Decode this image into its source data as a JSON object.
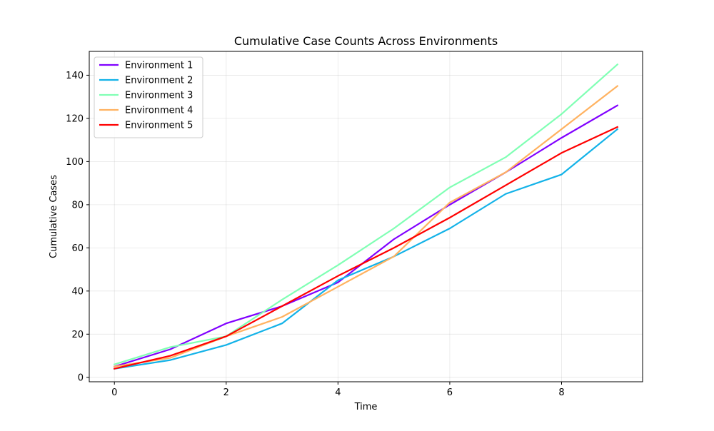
{
  "chart_data": {
    "type": "line",
    "title": "Cumulative Case Counts Across Environments",
    "xlabel": "Time",
    "ylabel": "Cumulative Cases",
    "xlim": [
      -0.45,
      9.45
    ],
    "ylim": [
      -2.05,
      151.05
    ],
    "xticks": [
      0,
      2,
      4,
      6,
      8
    ],
    "yticks": [
      0,
      20,
      40,
      60,
      80,
      100,
      120,
      140
    ],
    "grid": true,
    "legend_position": "upper left",
    "x": [
      0,
      1,
      2,
      3,
      4,
      5,
      6,
      7,
      8,
      9
    ],
    "series": [
      {
        "name": "Environment 1",
        "color": "#8000ff",
        "values": [
          5,
          13,
          25,
          33,
          44,
          64,
          80,
          95,
          111,
          126
        ]
      },
      {
        "name": "Environment 2",
        "color": "#12b2e8",
        "values": [
          4,
          8,
          15,
          25,
          45,
          56,
          69,
          85,
          94,
          115
        ]
      },
      {
        "name": "Environment 3",
        "color": "#80ffb4",
        "values": [
          6,
          14,
          19,
          36,
          52,
          69,
          88,
          102,
          122,
          145
        ]
      },
      {
        "name": "Environment 4",
        "color": "#ffb260",
        "values": [
          5,
          9,
          19,
          28,
          42,
          56,
          81,
          95,
          115,
          135
        ]
      },
      {
        "name": "Environment 5",
        "color": "#ff0000",
        "values": [
          4,
          10,
          19,
          33,
          47,
          60,
          74,
          89,
          104,
          116
        ]
      }
    ]
  }
}
